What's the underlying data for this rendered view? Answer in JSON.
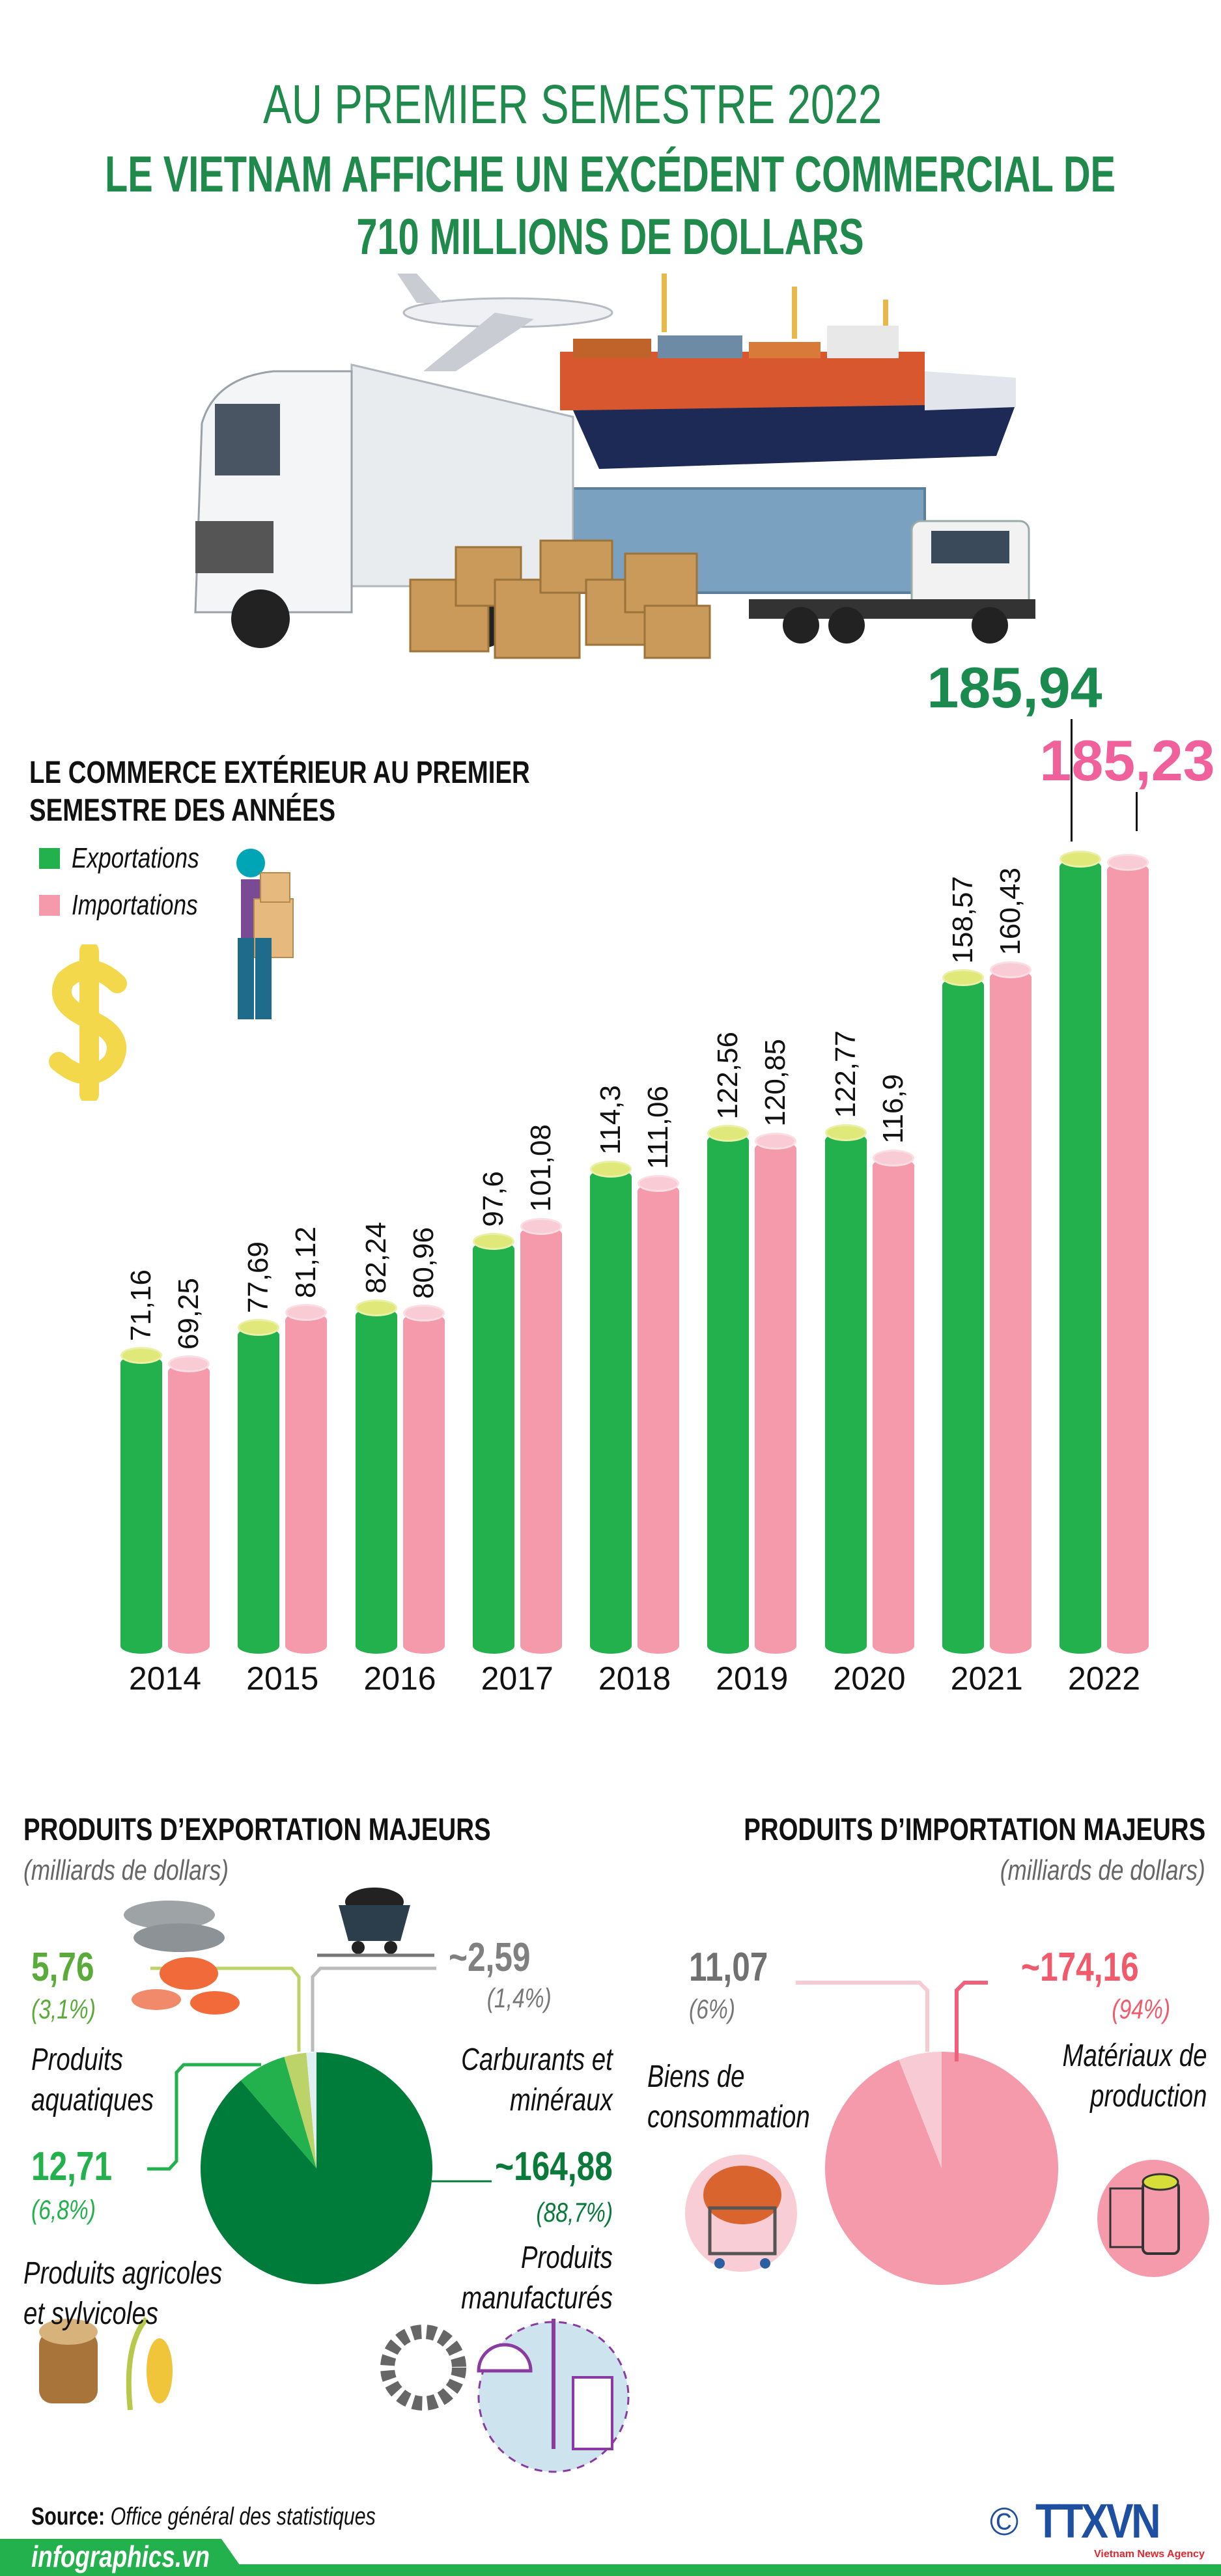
{
  "header": {
    "line1": "AU PREMIER SEMESTRE 2022",
    "line2": "LE VIETNAM AFFICHE UN EXCÉDENT COMMERCIAL DE",
    "line3": "710 MILLIONS DE DOLLARS"
  },
  "colors": {
    "title_green": "#1f8a4c",
    "export_green": "#22b14c",
    "import_pink": "#f49aaa",
    "export_cap": "#e0e87a",
    "import_cap": "#f9ccd5",
    "callout_green": "#1a8a4f",
    "callout_pink": "#f0609a"
  },
  "chart_data": {
    "type": "bar",
    "title": "LE COMMERCE EXTÉRIEUR AU PREMIER SEMESTRE DES ANNÉES",
    "title_lines": [
      "LE COMMERCE EXTÉRIEUR AU PREMIER",
      "SEMESTRE DES ANNÉES"
    ],
    "categories": [
      "2014",
      "2015",
      "2016",
      "2017",
      "2018",
      "2019",
      "2020",
      "2021",
      "2022"
    ],
    "series": [
      {
        "name": "Exportations",
        "color": "#22b14c",
        "values": [
          71.16,
          77.69,
          82.24,
          97.6,
          114.3,
          122.56,
          122.77,
          158.57,
          185.94
        ],
        "labels": [
          "71,16",
          "77,69",
          "82,24",
          "97,6",
          "114,3",
          "122,56",
          "122,77",
          "158,57",
          "185,94"
        ]
      },
      {
        "name": "Importations",
        "color": "#f49aaa",
        "values": [
          69.25,
          81.12,
          80.96,
          101.08,
          111.06,
          120.85,
          116.9,
          160.43,
          185.23
        ],
        "labels": [
          "69,25",
          "81,12",
          "80,96",
          "101,08",
          "111,06",
          "120,85",
          "116,9",
          "160,43",
          "185,23"
        ]
      }
    ],
    "legend": "top-left",
    "grid": false
  },
  "exports": {
    "title": "PRODUITS D’EXPORTATION MAJEURS",
    "unit": "(milliards de dollars)",
    "chart_data": {
      "type": "pie",
      "slices": [
        {
          "name": "Carburants et minéraux",
          "label_lines": [
            "Carburants et",
            "minéraux"
          ],
          "value": 2.59,
          "value_label": "~2,59",
          "pct_label": "(1,4%)",
          "color": "#dff0f3"
        },
        {
          "name": "Produits aquatiques",
          "label_lines": [
            "Produits",
            "aquatiques"
          ],
          "value": 5.76,
          "value_label": "5,76",
          "pct_label": "(3,1%)",
          "color": "#bcd36a"
        },
        {
          "name": "Produits agricoles et sylvicoles",
          "label_lines": [
            "Produits agricoles",
            "et sylvicoles"
          ],
          "value": 12.71,
          "value_label": "12,71",
          "pct_label": "(6,8%)",
          "color": "#22b14c"
        },
        {
          "name": "Produits manufacturés",
          "label_lines": [
            "Produits",
            "manufacturés"
          ],
          "value": 164.88,
          "value_label": "~164,88",
          "pct_label": "(88,7%)",
          "color": "#007c3a"
        }
      ]
    }
  },
  "imports": {
    "title": "PRODUITS D’IMPORTATION MAJEURS",
    "unit": "(milliards de dollars)",
    "chart_data": {
      "type": "pie",
      "slices": [
        {
          "name": "Biens de consommation",
          "label_lines": [
            "Biens de",
            "consommation"
          ],
          "value": 11.07,
          "value_label": "11,07",
          "pct_label": "(6%)",
          "color": "#f8cad3"
        },
        {
          "name": "Matériaux de production",
          "label_lines": [
            "Matériaux de",
            "production"
          ],
          "value": 174.16,
          "value_label": "~174,16",
          "pct_label": "(94%)",
          "color": "#f49aaa"
        }
      ]
    }
  },
  "footer": {
    "source_label": "Source:",
    "source_text": "Office général des statistiques",
    "site": "infographics.vn",
    "copyright": "©",
    "logo": "TTXVN",
    "logo_sub": "Vietnam News Agency"
  }
}
